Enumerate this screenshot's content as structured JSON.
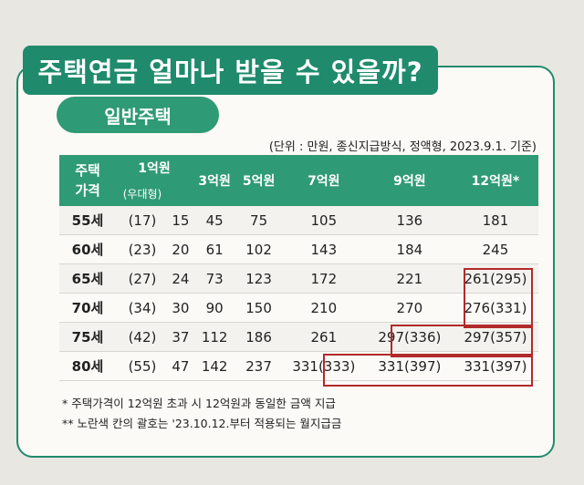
{
  "title": "주택연금 얼마나 받을 수 있을까?",
  "section": "일반주택",
  "unit_note": "(단위 : 만원, 종신지급방식, 정액형, 2023.9.1. 기준)",
  "table": {
    "corner": [
      "주택",
      "가격"
    ],
    "price_headers": [
      "1억원",
      "3억원",
      "5억원",
      "7억원",
      "9억원",
      "12억원*"
    ],
    "sub_header": "(우대형)",
    "rows": [
      {
        "age": "55세",
        "cells": [
          "(17)",
          "15",
          "45",
          "75",
          "105",
          "136",
          "181"
        ]
      },
      {
        "age": "60세",
        "cells": [
          "(23)",
          "20",
          "61",
          "102",
          "143",
          "184",
          "245"
        ]
      },
      {
        "age": "65세",
        "cells": [
          "(27)",
          "24",
          "73",
          "123",
          "172",
          "221",
          "261(295)"
        ]
      },
      {
        "age": "70세",
        "cells": [
          "(34)",
          "30",
          "90",
          "150",
          "210",
          "270",
          "276(331)"
        ]
      },
      {
        "age": "75세",
        "cells": [
          "(42)",
          "37",
          "112",
          "186",
          "261",
          "297(336)",
          "297(357)"
        ]
      },
      {
        "age": "80세",
        "cells": [
          "(55)",
          "47",
          "142",
          "237",
          "331(333)",
          "331(397)",
          "331(397)"
        ]
      }
    ]
  },
  "footnotes": [
    "* 주택가격이 12억원 초과 시 12억원과 동일한 금액 지급",
    "** 노란색 칸의 괄호는 '23.10.12.부터 적용되는 월지급금"
  ],
  "colors": {
    "green": "#1f8a6c",
    "highlight_border": "#b22a2a"
  }
}
